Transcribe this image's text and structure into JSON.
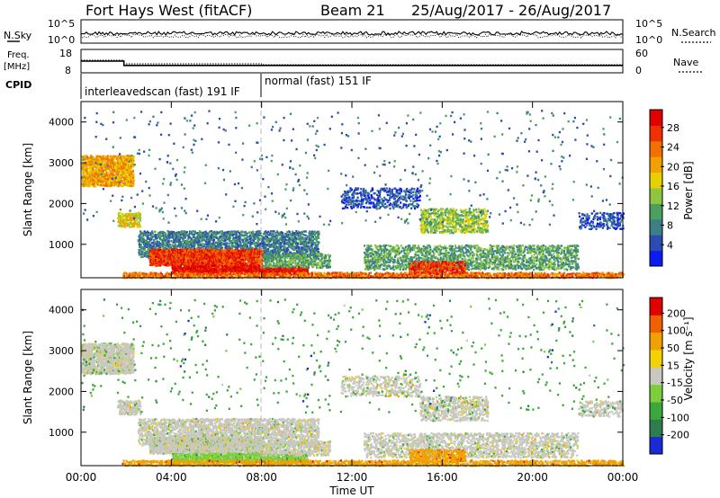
{
  "header": {
    "station": "Fort Hays West (fitACF)",
    "beam": "Beam 21",
    "date_range": "25/Aug/2017 - 26/Aug/2017"
  },
  "chart_data": [
    {
      "type": "line",
      "panel": "noise",
      "left_label": "N.Sky",
      "right_label": "N.Search",
      "left_ticks": [
        "10^5",
        "10^0"
      ],
      "right_ticks": [
        "10^5",
        "10^0"
      ],
      "series": [
        {
          "name": "N.Sky",
          "style": "solid"
        },
        {
          "name": "N.Search",
          "style": "dotted"
        }
      ]
    },
    {
      "type": "line",
      "panel": "frequency",
      "left_label_1": "Freq.",
      "left_label_2": "[MHz]",
      "right_label": "Nave",
      "left_ticks": [
        "18",
        "8"
      ],
      "right_ticks": [
        "60",
        "0"
      ],
      "series": [
        {
          "name": "Freq.",
          "style": "solid",
          "x": [
            0,
            1.9,
            1.9,
            24
          ],
          "y": [
            13,
            13,
            11,
            11
          ]
        },
        {
          "name": "Nave",
          "style": "dotted"
        }
      ]
    },
    {
      "type": "table",
      "panel": "cpid",
      "label": "CPID",
      "segments": [
        {
          "text": "interleavedscan (fast) 191 IF",
          "start_hour": 0,
          "end_hour": 8
        },
        {
          "text": "normal (fast) 151 IF",
          "start_hour": 8,
          "end_hour": 24
        }
      ]
    },
    {
      "type": "heatmap",
      "panel": "power",
      "ylabel": "Slant Range [km]",
      "xlim": [
        0,
        24
      ],
      "ylim": [
        180,
        4500
      ],
      "yticks": [
        "4000",
        "3000",
        "2000",
        "1000"
      ],
      "colorbar_label": "Power [dB]",
      "colorbar_ticks": [
        "28",
        "24",
        "20",
        "16",
        "12",
        "8",
        "4"
      ],
      "colors": [
        "#0a1cf0",
        "#2e4bb3",
        "#3c7f86",
        "#4aa060",
        "#8fc640",
        "#e6d000",
        "#f0a000",
        "#f07000",
        "#f03000",
        "#e00000"
      ]
    },
    {
      "type": "heatmap",
      "panel": "velocity",
      "ylabel": "Slant Range [km]",
      "xlabel": "Time UT",
      "xlim": [
        0,
        24
      ],
      "ylim": [
        180,
        4500
      ],
      "xticks": [
        "00:00",
        "04:00",
        "08:00",
        "12:00",
        "16:00",
        "20:00",
        "00:00"
      ],
      "yticks": [
        "4000",
        "3000",
        "2000",
        "1000"
      ],
      "colorbar_label": "Velocity [m s⁻¹]",
      "colorbar_ticks": [
        "200",
        "100",
        "50",
        "15",
        "-15",
        "-50",
        "-100",
        "-200"
      ],
      "colors": [
        "#1a2ad6",
        "#2f7d4f",
        "#3aa83a",
        "#7ccf3a",
        "#c8c8c0",
        "#f2d200",
        "#f0a000",
        "#f06000",
        "#e00000"
      ]
    }
  ]
}
